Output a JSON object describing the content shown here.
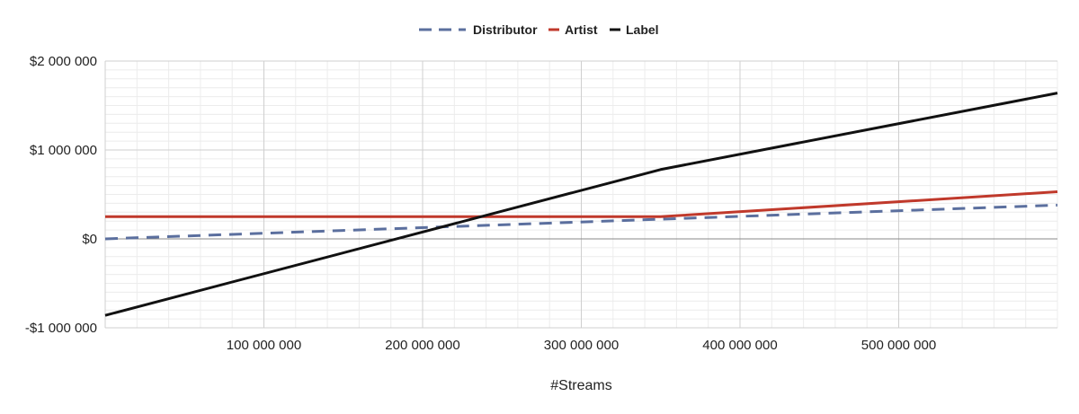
{
  "chart_data": {
    "type": "line",
    "title": "",
    "xlabel": "#Streams",
    "ylabel": "",
    "xlim": [
      0,
      600000000
    ],
    "ylim": [
      -1000000,
      2000000
    ],
    "x_ticks": [
      100000000,
      200000000,
      300000000,
      400000000,
      500000000
    ],
    "x_tick_labels": [
      "100 000 000",
      "200 000 000",
      "300 000 000",
      "400 000 000",
      "500 000 000"
    ],
    "y_ticks": [
      2000000,
      1000000,
      0,
      -1000000
    ],
    "y_tick_labels": [
      "$2 000 000",
      "$1 000 000",
      "$0",
      "-$1 000 000"
    ],
    "grid": true,
    "legend_position": "top-center",
    "series": [
      {
        "name": "Distributor",
        "color": "#5b6f9e",
        "dash": "dashed",
        "x": [
          0,
          600000000
        ],
        "y": [
          0,
          380000.0
        ]
      },
      {
        "name": "Artist",
        "color": "#c0392b",
        "dash": "solid",
        "x": [
          0,
          350000000,
          600000000
        ],
        "y": [
          250000,
          250000,
          530000
        ]
      },
      {
        "name": "Label",
        "color": "#111111",
        "dash": "solid",
        "x": [
          0,
          350000000,
          600000000
        ],
        "y": [
          -860000,
          780000,
          1640000
        ]
      }
    ]
  }
}
